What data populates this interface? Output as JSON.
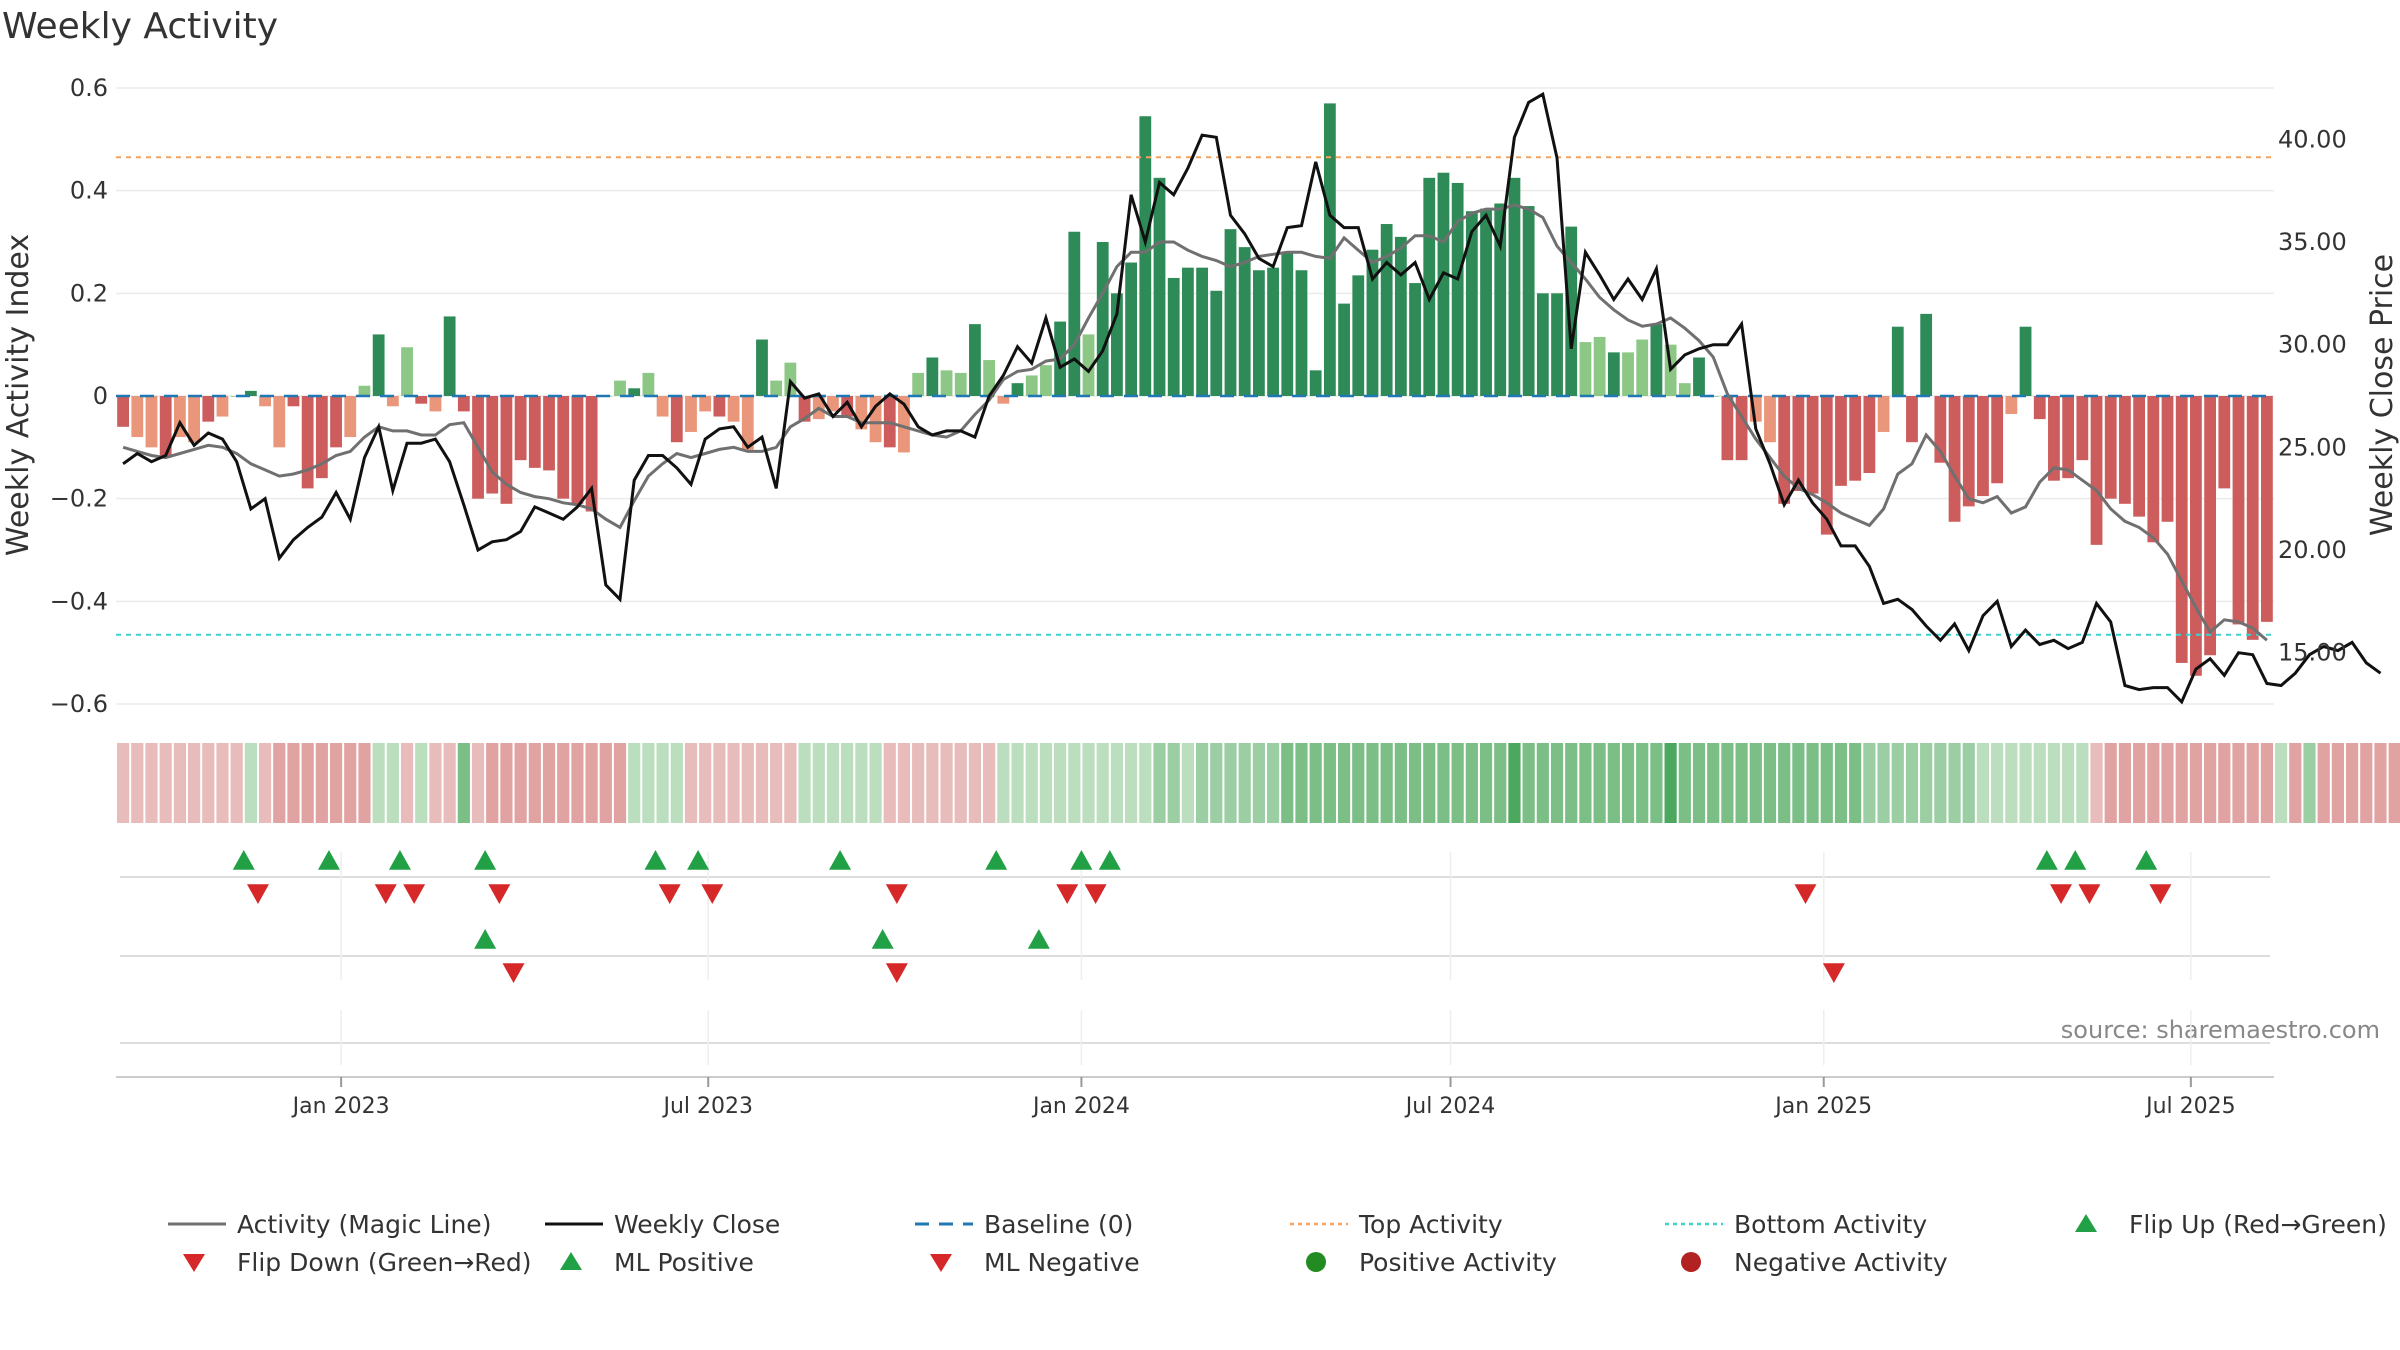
{
  "chart_data": {
    "type": "bar",
    "title": "Weekly Activity",
    "ylabel": "Weekly Activity Index",
    "y2label": "Weekly Close Price",
    "ylim": [
      -0.6,
      0.6
    ],
    "y2lim": [
      12.5,
      42.5
    ],
    "yticks": [
      "0.6",
      "0.4",
      "0.2",
      "0",
      "−0.2",
      "−0.4",
      "−0.6"
    ],
    "y2ticks": [
      "40.00",
      "35.00",
      "30.00",
      "25.00",
      "20.00",
      "15.00"
    ],
    "xticks": [
      "Jan 2023",
      "Jul 2023",
      "Jan 2024",
      "Jul 2024",
      "Jan 2025",
      "Jul 2025"
    ],
    "top_activity": 0.465,
    "bottom_activity": -0.465,
    "source": "source: sharemaestro.com",
    "colors": {
      "pos_strong": "#2e8b57",
      "pos_weak": "#8cc785",
      "neg_strong": "#cd5c5c",
      "neg_weak": "#e9967a",
      "magic_line": "#707070",
      "close_line": "#111111",
      "baseline": "#1f77b4",
      "top": "#f4a460",
      "bottom": "#40d0d0",
      "flip_up": "#22a045",
      "flip_down": "#d62828"
    },
    "activity": [
      -0.06,
      -0.08,
      -0.1,
      -0.12,
      -0.08,
      -0.09,
      -0.05,
      -0.04,
      0,
      0.01,
      -0.02,
      -0.1,
      -0.02,
      -0.18,
      -0.16,
      -0.1,
      -0.08,
      0.02,
      0.12,
      -0.02,
      0.095,
      -0.015,
      -0.03,
      0.155,
      -0.03,
      -0.2,
      -0.19,
      -0.21,
      -0.125,
      -0.14,
      -0.145,
      -0.2,
      -0.21,
      -0.225,
      0,
      0.03,
      0.015,
      0.045,
      -0.04,
      -0.09,
      -0.07,
      -0.03,
      -0.04,
      -0.05,
      -0.105,
      0.11,
      0.03,
      0.065,
      -0.05,
      -0.045,
      -0.03,
      -0.04,
      -0.065,
      -0.09,
      -0.1,
      -0.11,
      0.045,
      0.075,
      0.05,
      0.045,
      0.14,
      0.07,
      -0.015,
      0.025,
      0.04,
      0.06,
      0.145,
      0.32,
      0.12,
      0.3,
      0.2,
      0.26,
      0.545,
      0.425,
      0.23,
      0.25,
      0.25,
      0.205,
      0.325,
      0.29,
      0.245,
      0.25,
      0.28,
      0.245,
      0.05,
      0.57,
      0.18,
      0.235,
      0.285,
      0.335,
      0.31,
      0.22,
      0.425,
      0.435,
      0.415,
      0.36,
      0.365,
      0.375,
      0.425,
      0.37,
      0.2,
      0.2,
      0.33,
      0.105,
      0.115,
      0.085,
      0.085,
      0.11,
      0.14,
      0.1,
      0.025,
      0.075,
      0,
      -0.125,
      -0.125,
      -0.05,
      -0.09,
      -0.21,
      -0.185,
      -0.19,
      -0.27,
      -0.175,
      -0.165,
      -0.15,
      -0.07,
      0.135,
      -0.09,
      0.16,
      -0.13,
      -0.245,
      -0.215,
      -0.195,
      -0.17,
      -0.035,
      0.135,
      -0.045,
      -0.165,
      -0.16,
      -0.125,
      -0.29,
      -0.2,
      -0.21,
      -0.235,
      -0.285,
      -0.245,
      -0.52,
      -0.545,
      -0.505,
      -0.18,
      -0.445,
      -0.475,
      -0.44
    ],
    "close": [
      24.2,
      24.7,
      24.3,
      24.6,
      26.2,
      25.1,
      25.7,
      25.4,
      24.3,
      22.0,
      22.5,
      19.6,
      20.5,
      21.1,
      21.6,
      22.8,
      21.5,
      24.5,
      26.0,
      22.9,
      25.2,
      25.2,
      25.4,
      24.3,
      22.2,
      20.0,
      20.4,
      20.5,
      20.9,
      22.1,
      21.8,
      21.5,
      22.1,
      23.0,
      18.3,
      17.6,
      23.4,
      24.6,
      24.6,
      24.0,
      23.2,
      25.4,
      25.9,
      26.0,
      25.0,
      25.5,
      23.0,
      28.2,
      27.4,
      27.6,
      26.5,
      27.2,
      26.0,
      27.0,
      27.6,
      27.1,
      26.0,
      25.6,
      25.8,
      25.8,
      25.5,
      27.5,
      28.5,
      29.9,
      29.1,
      31.3,
      28.9,
      29.3,
      28.7,
      29.7,
      31.5,
      37.3,
      35.0,
      37.9,
      37.3,
      38.6,
      40.2,
      40.1,
      36.3,
      35.4,
      34.2,
      33.8,
      35.7,
      35.8,
      38.9,
      36.3,
      35.7,
      35.7,
      33.2,
      34.0,
      33.4,
      34.0,
      32.2,
      33.5,
      33.2,
      35.5,
      36.3,
      34.8,
      40.1,
      41.8,
      42.2,
      39.1,
      29.8,
      34.5,
      33.4,
      32.2,
      33.2,
      32.2,
      33.7,
      28.8,
      29.5,
      29.8,
      30.0,
      30.0,
      31.0,
      25.9,
      24.2,
      22.2,
      23.4,
      22.3,
      21.5,
      20.2,
      20.2,
      19.2,
      17.4,
      17.6,
      17.1,
      16.3,
      15.6,
      16.4,
      15.1,
      16.8,
      17.5,
      15.3,
      16.1,
      15.4,
      15.6,
      15.2,
      15.5,
      17.4,
      16.5,
      13.4,
      13.2,
      13.3,
      13.3,
      12.6,
      14.2,
      14.7,
      13.9,
      15.0,
      14.9,
      13.5,
      13.4,
      14.0,
      14.9,
      15.3,
      15.1,
      15.5,
      14.5,
      14.0
    ],
    "magic": [
      25.0,
      24.8,
      24.6,
      24.5,
      24.7,
      24.9,
      25.1,
      25.0,
      24.7,
      24.2,
      23.9,
      23.6,
      23.7,
      23.9,
      24.2,
      24.6,
      24.8,
      25.5,
      26.0,
      25.8,
      25.8,
      25.6,
      25.6,
      26.1,
      26.2,
      25.0,
      23.8,
      23.2,
      22.8,
      22.6,
      22.5,
      22.3,
      22.2,
      22.0,
      21.5,
      21.1,
      22.4,
      23.6,
      24.2,
      24.7,
      24.5,
      24.7,
      24.9,
      25.0,
      24.8,
      24.8,
      25.0,
      26.0,
      26.4,
      26.9,
      26.5,
      26.5,
      26.2,
      26.2,
      26.2,
      26.0,
      25.8,
      25.6,
      25.5,
      25.8,
      26.6,
      27.3,
      28.3,
      28.7,
      28.8,
      29.2,
      29.3,
      30.0,
      31.3,
      32.5,
      33.8,
      34.5,
      34.5,
      35.0,
      35.0,
      34.6,
      34.3,
      34.1,
      33.8,
      34.0,
      34.3,
      34.4,
      34.5,
      34.5,
      34.3,
      34.2,
      35.2,
      34.6,
      34.0,
      34.3,
      34.7,
      35.3,
      35.3,
      35.0,
      36.0,
      36.4,
      36.6,
      36.6,
      36.8,
      36.6,
      36.2,
      34.8,
      34.0,
      33.2,
      32.3,
      31.7,
      31.2,
      30.9,
      31.0,
      31.3,
      30.8,
      30.2,
      29.4,
      27.6,
      26.5,
      25.4,
      24.5,
      23.6,
      23.0,
      22.7,
      22.3,
      21.8,
      21.5,
      21.2,
      22.0,
      23.7,
      24.2,
      25.6,
      24.8,
      23.6,
      22.5,
      22.3,
      22.6,
      21.8,
      22.1,
      23.3,
      24.0,
      23.9,
      23.4,
      22.9,
      22.0,
      21.4,
      21.1,
      20.6,
      19.8,
      18.5,
      17.2,
      16.0,
      16.6,
      16.5,
      16.2,
      15.6
    ],
    "heat_strip": [
      -0.2,
      -0.2,
      -0.2,
      -0.2,
      -0.2,
      -0.2,
      -0.2,
      -0.2,
      -0.2,
      0.2,
      -0.2,
      -0.4,
      -0.4,
      -0.4,
      -0.4,
      -0.4,
      -0.4,
      -0.4,
      0.2,
      0.2,
      -0.2,
      0.2,
      -0.2,
      -0.2,
      0.6,
      -0.2,
      -0.4,
      -0.4,
      -0.4,
      -0.4,
      -0.4,
      -0.4,
      -0.4,
      -0.4,
      -0.4,
      -0.4,
      0.2,
      0.2,
      0.2,
      0.2,
      -0.2,
      -0.2,
      -0.2,
      -0.2,
      -0.2,
      -0.2,
      -0.2,
      -0.2,
      0.2,
      0.2,
      0.2,
      0.2,
      0.2,
      0.2,
      -0.2,
      -0.2,
      -0.2,
      -0.2,
      -0.2,
      -0.2,
      -0.2,
      -0.2,
      0.2,
      0.2,
      0.2,
      0.2,
      0.2,
      0.2,
      0.2,
      0.2,
      0.2,
      0.2,
      0.2,
      0.4,
      0.4,
      0.2,
      0.4,
      0.4,
      0.4,
      0.4,
      0.4,
      0.4,
      0.6,
      0.6,
      0.6,
      0.6,
      0.6,
      0.6,
      0.6,
      0.6,
      0.6,
      0.6,
      0.6,
      0.6,
      0.6,
      0.6,
      0.6,
      0.6,
      0.9,
      0.6,
      0.6,
      0.6,
      0.6,
      0.6,
      0.6,
      0.6,
      0.6,
      0.6,
      0.6,
      0.9,
      0.6,
      0.6,
      0.6,
      0.6,
      0.6,
      0.6,
      0.6,
      0.6,
      0.6,
      0.6,
      0.6,
      0.6,
      0.6,
      0.4,
      0.4,
      0.4,
      0.4,
      0.4,
      0.4,
      0.4,
      0.4,
      0.2,
      0.2,
      0.2,
      0.2,
      0.2,
      0.2,
      0.2,
      0.2,
      -0.2,
      -0.4,
      -0.4,
      -0.4,
      -0.4,
      -0.4,
      -0.4,
      -0.4,
      -0.4,
      -0.4,
      -0.4,
      -0.4,
      -0.4,
      0.2,
      -0.4,
      0.4,
      -0.4,
      -0.4,
      -0.4,
      -0.4,
      -0.4,
      -0.4,
      -0.4,
      -0.4,
      -0.4,
      -0.4,
      -0.4,
      0.2,
      -0.4,
      -0.4,
      -0.4,
      -0.4,
      -0.4,
      -0.4,
      -0.4,
      -0.4,
      -0.4,
      -0.4,
      -0.8,
      -0.8,
      -0.8,
      -0.6,
      -0.6,
      -0.6,
      -0.6,
      -0.6
    ],
    "markers": {
      "row1_up": [
        "2022-11-14",
        "2022-12-26",
        "2023-01-30",
        "2023-03-13",
        "2023-06-05",
        "2023-06-26",
        "2023-09-04",
        "2023-11-20",
        "2024-01-01",
        "2024-01-15",
        "2025-04-21",
        "2025-05-05",
        "2025-06-09"
      ],
      "row1_down": [
        "2022-11-21",
        "2023-01-23",
        "2023-02-06",
        "2023-03-20",
        "2023-06-12",
        "2023-07-03",
        "2023-10-02",
        "2023-12-25",
        "2024-01-08",
        "2024-12-23",
        "2025-04-28",
        "2025-05-12",
        "2025-06-16"
      ],
      "row2_up": [
        "2023-03-13",
        "2023-09-25",
        "2023-12-11"
      ],
      "row2_down": [
        "2023-03-27",
        "2023-10-02",
        "2025-01-06"
      ]
    },
    "legend": [
      {
        "label": "Activity (Magic Line)",
        "kind": "line",
        "color": "#707070"
      },
      {
        "label": "Weekly Close",
        "kind": "line",
        "color": "#111111"
      },
      {
        "label": "Baseline (0)",
        "kind": "dash",
        "color": "#1f77b4"
      },
      {
        "label": "Top Activity",
        "kind": "dot",
        "color": "#f4a460"
      },
      {
        "label": "Bottom Activity",
        "kind": "dot",
        "color": "#40d0d0"
      },
      {
        "label": "Flip Up (Red→Green)",
        "kind": "up",
        "color": "#22a045"
      },
      {
        "label": "Flip Down (Green→Red)",
        "kind": "down",
        "color": "#d62828"
      },
      {
        "label": "ML Positive",
        "kind": "up",
        "color": "#22a045"
      },
      {
        "label": "ML Negative",
        "kind": "down",
        "color": "#d62828"
      },
      {
        "label": "Positive Activity",
        "kind": "circle",
        "color": "#228b22"
      },
      {
        "label": "Negative Activity",
        "kind": "circle",
        "color": "#b22222"
      }
    ]
  }
}
